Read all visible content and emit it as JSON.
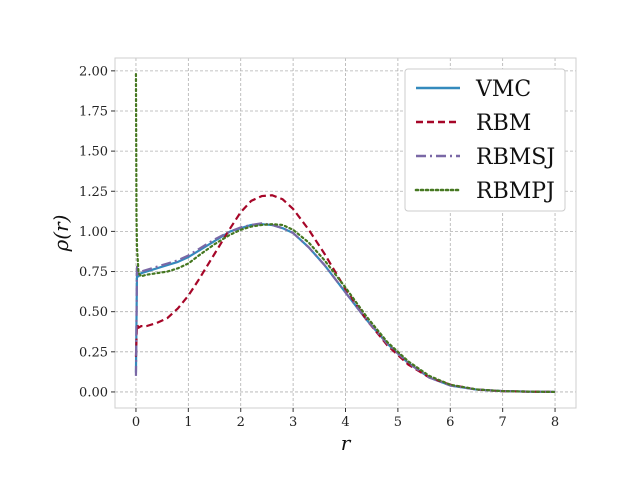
{
  "chart_data": {
    "type": "line",
    "title": "",
    "xlabel": "r",
    "ylabel": "ρ(r)",
    "xlim": [
      -0.4,
      8.4
    ],
    "ylim": [
      -0.1,
      2.08
    ],
    "grid": true,
    "legend_position": "top-right",
    "x_ticks": [
      0,
      1,
      2,
      3,
      4,
      5,
      6,
      7,
      8
    ],
    "x_tick_labels": [
      "0",
      "1",
      "2",
      "3",
      "4",
      "5",
      "6",
      "7",
      "8"
    ],
    "y_ticks": [
      0.0,
      0.25,
      0.5,
      0.75,
      1.0,
      1.25,
      1.5,
      1.75,
      2.0
    ],
    "y_tick_labels": [
      "0.00",
      "0.25",
      "0.50",
      "0.75",
      "1.00",
      "1.25",
      "1.50",
      "1.75",
      "2.00"
    ],
    "series": [
      {
        "name": "VMC",
        "color": "#348abd",
        "dash": "solid",
        "x": [
          0,
          0.02,
          0.05,
          0.1,
          0.2,
          0.4,
          0.6,
          0.8,
          1.0,
          1.2,
          1.5,
          1.8,
          2.0,
          2.2,
          2.4,
          2.6,
          2.8,
          3.0,
          3.3,
          3.6,
          4.0,
          4.4,
          4.8,
          5.2,
          5.6,
          6.0,
          6.5,
          7.0,
          7.5,
          8.0
        ],
        "y": [
          0.12,
          0.75,
          0.72,
          0.74,
          0.75,
          0.77,
          0.79,
          0.81,
          0.84,
          0.88,
          0.94,
          1.0,
          1.02,
          1.04,
          1.045,
          1.04,
          1.02,
          0.99,
          0.9,
          0.79,
          0.62,
          0.45,
          0.3,
          0.18,
          0.09,
          0.04,
          0.015,
          0.005,
          0.002,
          0.0
        ]
      },
      {
        "name": "RBM",
        "color": "#a60628",
        "dash": "dashed",
        "x": [
          0,
          0.02,
          0.05,
          0.1,
          0.2,
          0.4,
          0.6,
          0.8,
          1.0,
          1.2,
          1.5,
          1.8,
          2.0,
          2.2,
          2.4,
          2.6,
          2.8,
          3.0,
          3.3,
          3.6,
          4.0,
          4.4,
          4.8,
          5.2,
          5.6,
          6.0,
          6.5,
          7.0,
          7.5,
          8.0
        ],
        "y": [
          0.22,
          0.42,
          0.4,
          0.41,
          0.41,
          0.43,
          0.46,
          0.52,
          0.6,
          0.7,
          0.86,
          1.02,
          1.12,
          1.19,
          1.22,
          1.225,
          1.2,
          1.14,
          1.01,
          0.86,
          0.64,
          0.45,
          0.29,
          0.17,
          0.09,
          0.045,
          0.015,
          0.005,
          0.002,
          0.0
        ]
      },
      {
        "name": "RBMSJ",
        "color": "#7a68a6",
        "dash": "dashdot",
        "x": [
          0,
          0.02,
          0.05,
          0.1,
          0.2,
          0.4,
          0.6,
          0.8,
          1.0,
          1.2,
          1.5,
          1.8,
          2.0,
          2.2,
          2.4,
          2.6,
          2.8,
          3.0,
          3.3,
          3.6,
          4.0,
          4.4,
          4.8,
          5.2,
          5.6,
          6.0,
          6.5,
          7.0,
          7.5,
          8.0
        ],
        "y": [
          0.1,
          0.78,
          0.74,
          0.75,
          0.76,
          0.78,
          0.8,
          0.82,
          0.85,
          0.89,
          0.95,
          1.0,
          1.025,
          1.04,
          1.05,
          1.04,
          1.02,
          0.99,
          0.9,
          0.79,
          0.62,
          0.45,
          0.3,
          0.18,
          0.09,
          0.04,
          0.015,
          0.005,
          0.002,
          0.0
        ]
      },
      {
        "name": "RBMPJ",
        "color": "#467821",
        "dash": "dotted",
        "x": [
          0,
          0.01,
          0.02,
          0.05,
          0.1,
          0.2,
          0.4,
          0.6,
          0.8,
          1.0,
          1.2,
          1.5,
          1.8,
          2.0,
          2.2,
          2.4,
          2.6,
          2.8,
          3.0,
          3.3,
          3.6,
          4.0,
          4.4,
          4.8,
          5.2,
          5.6,
          6.0,
          6.5,
          7.0,
          7.5,
          8.0
        ],
        "y": [
          1.98,
          1.1,
          0.9,
          0.74,
          0.72,
          0.73,
          0.74,
          0.75,
          0.77,
          0.8,
          0.85,
          0.92,
          0.98,
          1.01,
          1.03,
          1.04,
          1.045,
          1.04,
          1.01,
          0.93,
          0.82,
          0.65,
          0.47,
          0.31,
          0.19,
          0.1,
          0.045,
          0.016,
          0.005,
          0.002,
          0.0
        ]
      }
    ]
  }
}
